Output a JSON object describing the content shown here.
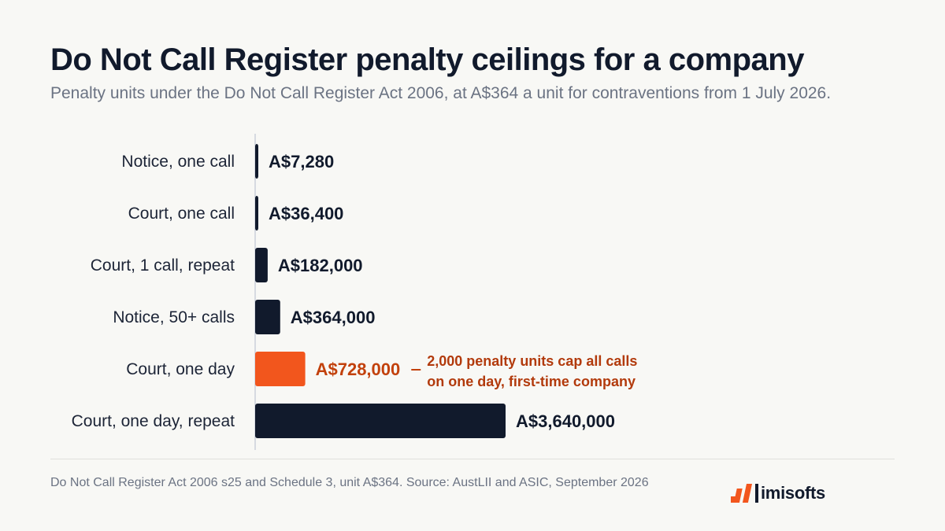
{
  "title": "Do Not Call Register penalty ceilings for a company",
  "subtitle": "Penalty units under the Do Not Call Register Act 2006, at A$364 a unit for contraventions from 1 July 2026.",
  "footnote": "Do Not Call Register Act 2006 s25 and Schedule 3, unit A$364. Source: AustLII and ASIC, September 2026",
  "logo": {
    "text": "imisofts",
    "icon": "stacked-bars-logo-icon",
    "color": "#f2561d"
  },
  "colors": {
    "bar": "#111a2c",
    "highlight": "#f2561d",
    "highlight_text": "#c2410c",
    "annotation_text": "#b23a0c",
    "axis": "#d6dae1"
  },
  "chart_data": {
    "type": "bar",
    "orientation": "horizontal",
    "categories": [
      "Notice, one call",
      "Court, one call",
      "Court, 1 call, repeat",
      "Notice, 50+ calls",
      "Court, one day",
      "Court, one day, repeat"
    ],
    "values": [
      7280,
      36400,
      182000,
      364000,
      728000,
      3640000
    ],
    "value_labels": [
      "A$7,280",
      "A$36,400",
      "A$182,000",
      "A$364,000",
      "A$728,000",
      "A$3,640,000"
    ],
    "highlight_index": 4,
    "annotation": {
      "index": 4,
      "lines": [
        "2,000 penalty units cap all calls",
        "on one day, first-time company"
      ]
    },
    "xlim": [
      0,
      3640000
    ],
    "grid": false,
    "xlabel": "",
    "ylabel": ""
  }
}
